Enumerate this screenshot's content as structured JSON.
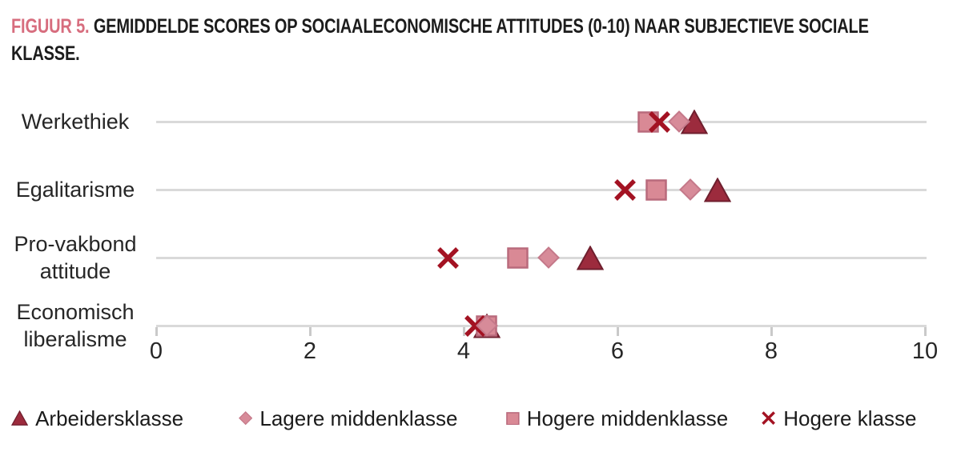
{
  "title": {
    "prefix": "FIGUUR 5.",
    "line1_rest": " GEMIDDELDE SCORES OP SOCIAALECONOMISCHE ATTITUDES (0-10) NAAR SUBJECTIEVE SOCIALE",
    "line2": "KLASSE."
  },
  "colors": {
    "title_prefix": "#d76d7e",
    "gridline": "#d9d9d9",
    "tick": "#c9c9c9",
    "text": "#262626"
  },
  "chart_data": {
    "type": "scatter",
    "subtype": "horizontal-dot-plot",
    "title": "FIGUUR 5. GEMIDDELDE SCORES OP SOCIAALECONOMISCHE ATTITUDES (0-10) NAAR SUBJECTIEVE SOCIALE KLASSE.",
    "categories": [
      "Werkethiek",
      "Egalitarisme",
      "Pro-vakbond attitude",
      "Economisch liberalisme"
    ],
    "category_lines": [
      [
        "Werkethiek"
      ],
      [
        "Egalitarisme"
      ],
      [
        "Pro-vakbond",
        "attitude"
      ],
      [
        "Economisch",
        "liberalisme"
      ]
    ],
    "x_axis": {
      "min": 0,
      "max": 10,
      "ticks": [
        0,
        2,
        4,
        6,
        8,
        10
      ]
    },
    "grid": "horizontal-category-lines",
    "legend_position": "bottom",
    "series": [
      {
        "name": "Arbeidersklasse",
        "marker": "triangle",
        "fill": "#9c2b3d",
        "stroke": "#6f1f2e",
        "values": [
          7.0,
          7.3,
          5.65,
          4.3
        ],
        "z": 1
      },
      {
        "name": "Lagere middenklasse",
        "marker": "diamond",
        "fill": "#d78b99",
        "stroke": "#c5798a",
        "values": [
          6.8,
          6.95,
          5.1,
          4.3
        ],
        "z": 4
      },
      {
        "name": "Hogere middenklasse",
        "marker": "square",
        "fill": "#d98995",
        "stroke": "#b96a7c",
        "values": [
          6.4,
          6.5,
          4.7,
          4.3
        ],
        "z": 2
      },
      {
        "name": "Hogere klasse",
        "marker": "x",
        "fill": "#a31222",
        "stroke": "#a31222",
        "values": [
          6.55,
          6.1,
          3.8,
          4.15
        ],
        "z": 3
      }
    ]
  },
  "legend": {
    "items": [
      "Arbeidersklasse",
      "Lagere middenklasse",
      "Hogere middenklasse",
      "Hogere klasse"
    ]
  }
}
